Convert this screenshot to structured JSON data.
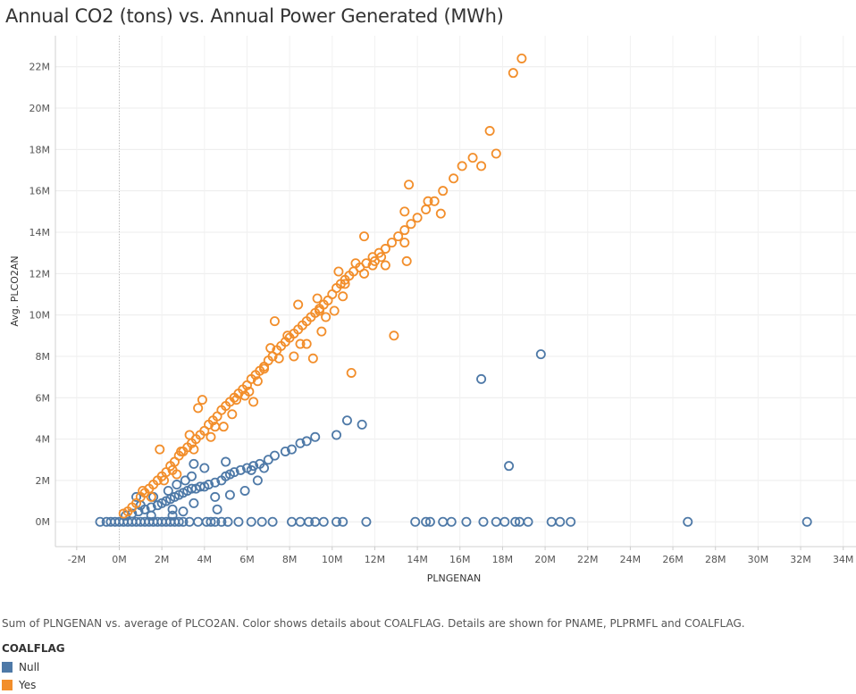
{
  "chart_data": {
    "type": "scatter",
    "title": "Annual CO2 (tons) vs. Annual Power Generated (MWh)",
    "xlabel": "PLNGENAN",
    "ylabel": "Avg. PLCO2AN",
    "xlim": [
      -3,
      34.6
    ],
    "ylim": [
      -1.2,
      23.5
    ],
    "x_ticks": [
      -2,
      0,
      2,
      4,
      6,
      8,
      10,
      12,
      14,
      16,
      18,
      20,
      22,
      24,
      26,
      28,
      30,
      32,
      34
    ],
    "x_tick_labels": [
      "-2M",
      "0M",
      "2M",
      "4M",
      "6M",
      "8M",
      "10M",
      "12M",
      "14M",
      "16M",
      "18M",
      "20M",
      "22M",
      "24M",
      "26M",
      "28M",
      "30M",
      "32M",
      "34M"
    ],
    "y_ticks": [
      0,
      2,
      4,
      6,
      8,
      10,
      12,
      14,
      16,
      18,
      20,
      22
    ],
    "y_tick_labels": [
      "0M",
      "2M",
      "4M",
      "6M",
      "8M",
      "10M",
      "12M",
      "14M",
      "16M",
      "18M",
      "20M",
      "22M"
    ],
    "grid": true,
    "legend_position": "bottom-left",
    "series": [
      {
        "name": "Null",
        "color": "#4e79a7",
        "points": [
          [
            -0.9,
            0
          ],
          [
            -0.6,
            0
          ],
          [
            -0.4,
            0
          ],
          [
            -0.2,
            0
          ],
          [
            0,
            0
          ],
          [
            0.2,
            0
          ],
          [
            0.4,
            0
          ],
          [
            0.6,
            0
          ],
          [
            0.8,
            0
          ],
          [
            1,
            0
          ],
          [
            1.2,
            0
          ],
          [
            1.4,
            0
          ],
          [
            1.6,
            0
          ],
          [
            1.8,
            0
          ],
          [
            2,
            0
          ],
          [
            2.2,
            0
          ],
          [
            2.4,
            0
          ],
          [
            2.6,
            0
          ],
          [
            2.8,
            0
          ],
          [
            3,
            0
          ],
          [
            3.3,
            0
          ],
          [
            3.7,
            0
          ],
          [
            4.1,
            0
          ],
          [
            4.3,
            0
          ],
          [
            4.5,
            0
          ],
          [
            4.8,
            0
          ],
          [
            5.1,
            0
          ],
          [
            5.6,
            0
          ],
          [
            6.2,
            0
          ],
          [
            6.7,
            0
          ],
          [
            7.2,
            0
          ],
          [
            8.1,
            0
          ],
          [
            8.5,
            0
          ],
          [
            8.9,
            0
          ],
          [
            9.2,
            0
          ],
          [
            9.6,
            0
          ],
          [
            10.2,
            0
          ],
          [
            10.5,
            0
          ],
          [
            11.6,
            0
          ],
          [
            13.9,
            0
          ],
          [
            14.4,
            0
          ],
          [
            14.6,
            0
          ],
          [
            15.2,
            0
          ],
          [
            15.6,
            0
          ],
          [
            16.3,
            0
          ],
          [
            17.1,
            0
          ],
          [
            17.7,
            0
          ],
          [
            18.1,
            0
          ],
          [
            18.6,
            0
          ],
          [
            18.8,
            0
          ],
          [
            19.2,
            0
          ],
          [
            20.3,
            0
          ],
          [
            20.7,
            0
          ],
          [
            21.2,
            0
          ],
          [
            26.7,
            0
          ],
          [
            32.3,
            0
          ],
          [
            0.3,
            0.3
          ],
          [
            0.6,
            0.4
          ],
          [
            0.9,
            0.5
          ],
          [
            1.2,
            0.6
          ],
          [
            1.5,
            0.7
          ],
          [
            1.8,
            0.8
          ],
          [
            2,
            0.9
          ],
          [
            2.2,
            1
          ],
          [
            2.4,
            1.1
          ],
          [
            2.6,
            1.2
          ],
          [
            2.8,
            1.3
          ],
          [
            3,
            1.4
          ],
          [
            3.2,
            1.5
          ],
          [
            3.4,
            1.6
          ],
          [
            3.6,
            1.6
          ],
          [
            3.8,
            1.7
          ],
          [
            4,
            1.7
          ],
          [
            4.2,
            1.8
          ],
          [
            4.5,
            1.9
          ],
          [
            4.8,
            2
          ],
          [
            5,
            2.2
          ],
          [
            5.2,
            2.3
          ],
          [
            5.4,
            2.4
          ],
          [
            5.7,
            2.5
          ],
          [
            6,
            2.6
          ],
          [
            6.3,
            2.7
          ],
          [
            6.6,
            2.8
          ],
          [
            7,
            3
          ],
          [
            7.3,
            3.2
          ],
          [
            7.8,
            3.4
          ],
          [
            8.1,
            3.5
          ],
          [
            8.5,
            3.8
          ],
          [
            8.8,
            3.9
          ],
          [
            9.2,
            4.1
          ],
          [
            10.2,
            4.2
          ],
          [
            10.7,
            4.9
          ],
          [
            11.4,
            4.7
          ],
          [
            1,
            0.8
          ],
          [
            1.6,
            1.2
          ],
          [
            2.3,
            1.5
          ],
          [
            2.7,
            1.8
          ],
          [
            3.1,
            2
          ],
          [
            3.4,
            2.2
          ],
          [
            0.8,
            1.2
          ],
          [
            1.5,
            0.3
          ],
          [
            2.5,
            0.6
          ],
          [
            3.5,
            0.9
          ],
          [
            4.5,
            1.2
          ],
          [
            5.2,
            1.3
          ],
          [
            5.9,
            1.5
          ],
          [
            6.5,
            2
          ],
          [
            4,
            2.6
          ],
          [
            3.5,
            2.8
          ],
          [
            5,
            2.9
          ],
          [
            6.2,
            2.5
          ],
          [
            6.8,
            2.6
          ],
          [
            2.5,
            0.3
          ],
          [
            3,
            0.5
          ],
          [
            4.6,
            0.6
          ],
          [
            17,
            6.9
          ],
          [
            19.8,
            8.1
          ],
          [
            18.3,
            2.7
          ]
        ]
      },
      {
        "name": "Yes",
        "color": "#f28e2b",
        "points": [
          [
            0.2,
            0.4
          ],
          [
            0.4,
            0.5
          ],
          [
            0.6,
            0.7
          ],
          [
            0.8,
            0.9
          ],
          [
            1,
            1.2
          ],
          [
            1.2,
            1.4
          ],
          [
            1.4,
            1.6
          ],
          [
            1.6,
            1.8
          ],
          [
            1.8,
            2
          ],
          [
            2,
            2.2
          ],
          [
            2.2,
            2.4
          ],
          [
            2.4,
            2.7
          ],
          [
            2.6,
            2.9
          ],
          [
            2.8,
            3.2
          ],
          [
            3,
            3.4
          ],
          [
            3.2,
            3.6
          ],
          [
            3.4,
            3.8
          ],
          [
            3.6,
            4
          ],
          [
            3.8,
            4.2
          ],
          [
            4,
            4.4
          ],
          [
            4.2,
            4.7
          ],
          [
            4.4,
            4.9
          ],
          [
            4.6,
            5.1
          ],
          [
            4.8,
            5.4
          ],
          [
            5,
            5.6
          ],
          [
            5.2,
            5.8
          ],
          [
            5.4,
            6
          ],
          [
            5.6,
            6.2
          ],
          [
            5.8,
            6.4
          ],
          [
            6,
            6.6
          ],
          [
            6.2,
            6.9
          ],
          [
            6.4,
            7.1
          ],
          [
            6.6,
            7.3
          ],
          [
            6.8,
            7.5
          ],
          [
            7,
            7.8
          ],
          [
            7.2,
            8
          ],
          [
            7.4,
            8.3
          ],
          [
            7.6,
            8.5
          ],
          [
            7.8,
            8.7
          ],
          [
            8,
            8.9
          ],
          [
            8.2,
            9.1
          ],
          [
            8.4,
            9.3
          ],
          [
            8.6,
            9.5
          ],
          [
            8.8,
            9.7
          ],
          [
            9,
            9.9
          ],
          [
            9.2,
            10.1
          ],
          [
            9.4,
            10.3
          ],
          [
            9.6,
            10.5
          ],
          [
            9.8,
            10.7
          ],
          [
            10,
            11
          ],
          [
            10.2,
            11.3
          ],
          [
            10.4,
            11.5
          ],
          [
            10.6,
            11.7
          ],
          [
            10.8,
            11.9
          ],
          [
            11,
            12.1
          ],
          [
            11.3,
            12.3
          ],
          [
            11.6,
            12.5
          ],
          [
            11.9,
            12.8
          ],
          [
            12.2,
            13
          ],
          [
            12.5,
            13.2
          ],
          [
            12.8,
            13.5
          ],
          [
            13.1,
            13.8
          ],
          [
            13.4,
            14.1
          ],
          [
            13.7,
            14.4
          ],
          [
            14,
            14.7
          ],
          [
            14.4,
            15.1
          ],
          [
            14.8,
            15.5
          ],
          [
            15.2,
            16
          ],
          [
            15.7,
            16.6
          ],
          [
            16.1,
            17.2
          ],
          [
            16.6,
            17.6
          ],
          [
            17,
            17.2
          ],
          [
            17.4,
            18.9
          ],
          [
            17.7,
            17.8
          ],
          [
            18.5,
            21.7
          ],
          [
            18.9,
            22.4
          ],
          [
            1.5,
            1.2
          ],
          [
            2.5,
            2.5
          ],
          [
            3.5,
            3.5
          ],
          [
            4.5,
            4.6
          ],
          [
            5.5,
            5.9
          ],
          [
            6.5,
            6.8
          ],
          [
            7.5,
            7.9
          ],
          [
            8.5,
            8.6
          ],
          [
            9.5,
            9.2
          ],
          [
            10.5,
            10.9
          ],
          [
            11.5,
            12
          ],
          [
            12.5,
            12.4
          ],
          [
            13.5,
            12.6
          ],
          [
            3.7,
            5.5
          ],
          [
            3.9,
            5.9
          ],
          [
            4.9,
            4.6
          ],
          [
            6.1,
            6.3
          ],
          [
            7.1,
            8.4
          ],
          [
            8.4,
            10.5
          ],
          [
            9.3,
            10.8
          ],
          [
            10.1,
            10.2
          ],
          [
            11.5,
            13.8
          ],
          [
            11.9,
            12.4
          ],
          [
            13.4,
            13.5
          ],
          [
            13.6,
            16.3
          ],
          [
            13.4,
            15
          ],
          [
            14.5,
            15.5
          ],
          [
            15.1,
            14.9
          ],
          [
            9.1,
            7.9
          ],
          [
            10.9,
            7.2
          ],
          [
            12.9,
            9
          ],
          [
            6.8,
            7.4
          ],
          [
            7.3,
            9.7
          ],
          [
            8.2,
            8
          ],
          [
            9.4,
            10.2
          ],
          [
            10.6,
            11.5
          ],
          [
            12,
            12.6
          ],
          [
            2.9,
            3.4
          ],
          [
            3.3,
            4.2
          ],
          [
            1.1,
            1.5
          ],
          [
            1.9,
            3.5
          ],
          [
            2.1,
            2
          ],
          [
            2.7,
            2.3
          ],
          [
            4.3,
            4.1
          ],
          [
            5.3,
            5.2
          ],
          [
            5.9,
            6.1
          ],
          [
            6.3,
            5.8
          ],
          [
            7.9,
            9
          ],
          [
            8.8,
            8.6
          ],
          [
            9.7,
            9.9
          ],
          [
            10.3,
            12.1
          ],
          [
            11.1,
            12.5
          ],
          [
            12.3,
            12.8
          ]
        ]
      }
    ]
  },
  "caption": "Sum of PLNGENAN vs. average of PLCO2AN.  Color shows details about COALFLAG.  Details are shown for PNAME, PLPRMFL and COALFLAG.",
  "legend": {
    "title": "COALFLAG",
    "items": [
      {
        "label": "Null",
        "color": "#4e79a7"
      },
      {
        "label": "Yes",
        "color": "#f28e2b"
      }
    ]
  }
}
